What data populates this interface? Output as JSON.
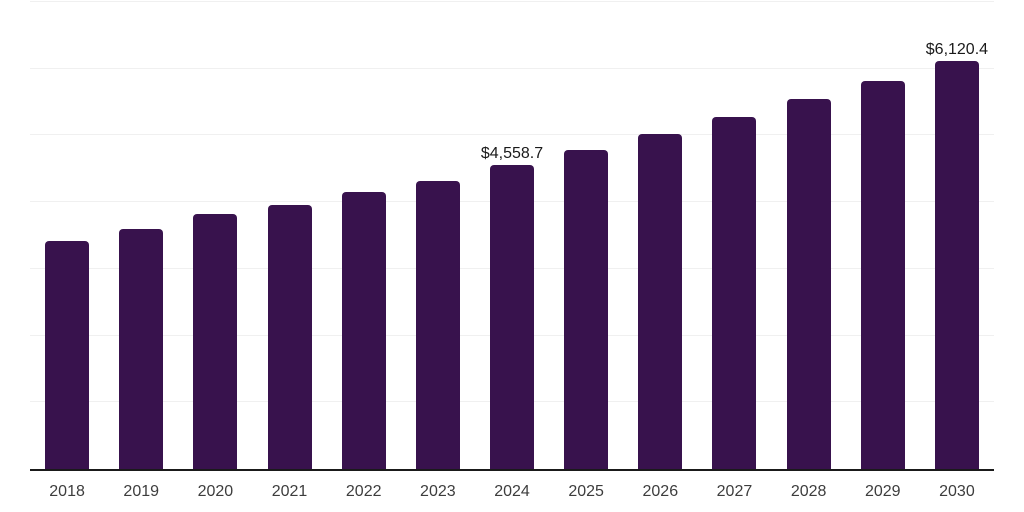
{
  "chart_data": {
    "type": "bar",
    "title": "",
    "xlabel": "",
    "ylabel": "",
    "categories": [
      "2018",
      "2019",
      "2020",
      "2021",
      "2022",
      "2023",
      "2024",
      "2025",
      "2026",
      "2027",
      "2028",
      "2029",
      "2030"
    ],
    "values": [
      3425,
      3600,
      3820,
      3955,
      4155,
      4320,
      4558.7,
      4780,
      5020,
      5280,
      5545,
      5815,
      6120.4
    ],
    "labeled_points": {
      "2024": "$4,558.7",
      "2030": "$6,120.4"
    },
    "ylim": [
      0,
      7000
    ],
    "gridline_step": 1000,
    "grid": true,
    "legend": null,
    "y_tick_labels_shown": false,
    "bar_color": "#38124D",
    "gridline_color": "#f0f0f0",
    "axis_line_color": "#1a1a1a",
    "x_tick_color": "#3d3d3d",
    "data_label_color": "#1a1a1a"
  }
}
